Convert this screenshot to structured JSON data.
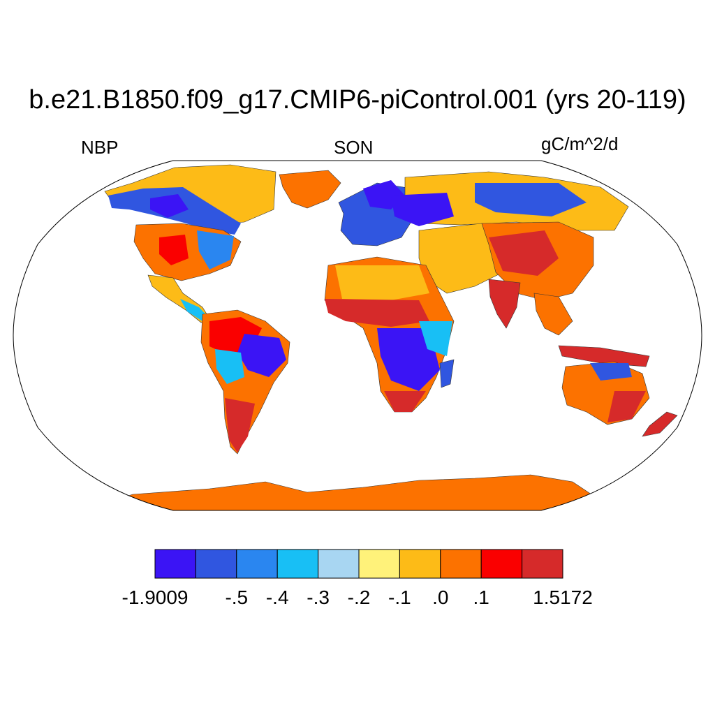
{
  "title": "b.e21.B1850.f09_g17.CMIP6-piControl.001 (yrs 20-119)",
  "left_label": "NBP",
  "center_label": "SON",
  "right_label": "gC/m^2/d",
  "colorbar": {
    "colors": [
      "#3b14f5",
      "#3056e0",
      "#2a86f0",
      "#18bff5",
      "#a8d6f2",
      "#fff27a",
      "#fdbb17",
      "#fc7200",
      "#fa0000",
      "#d62a2a"
    ],
    "labels": [
      "-1.9009",
      "-.5",
      "-.4",
      "-.3",
      "-.2",
      "-.1",
      ".0",
      ".1",
      "1.5172"
    ]
  },
  "map": {
    "projection": "Robinson",
    "variable": "NBP",
    "season": "SON",
    "units": "gC/m^2/d",
    "ocean_color": "#ffffff",
    "antarctica_color": "#fc7200"
  }
}
